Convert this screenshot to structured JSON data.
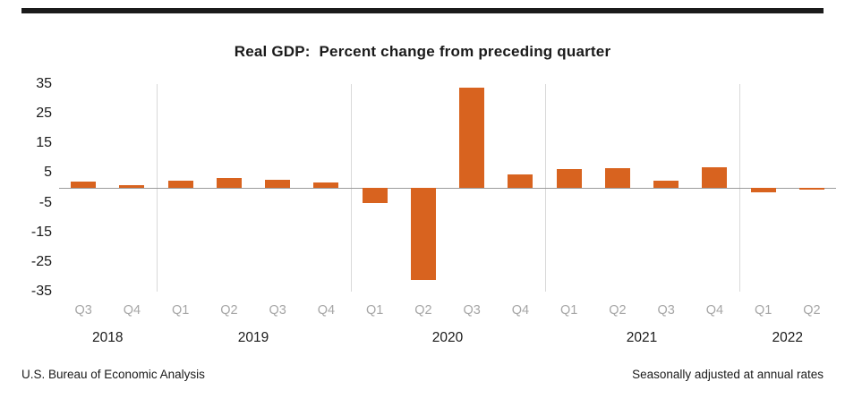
{
  "page": {
    "title": "Real GDP:  Percent change from preceding quarter",
    "footer_left": "U.S. Bureau of Economic Analysis",
    "footer_right": "Seasonally adjusted at annual rates"
  },
  "chart_data": {
    "type": "bar",
    "title": "Real GDP:  Percent change from preceding quarter",
    "categories": [
      "Q3",
      "Q4",
      "Q1",
      "Q2",
      "Q3",
      "Q4",
      "Q1",
      "Q2",
      "Q3",
      "Q4",
      "Q1",
      "Q2",
      "Q3",
      "Q4",
      "Q1",
      "Q2"
    ],
    "years": [
      {
        "label": "2018",
        "quarters": 2
      },
      {
        "label": "2019",
        "quarters": 4
      },
      {
        "label": "2020",
        "quarters": 4
      },
      {
        "label": "2021",
        "quarters": 4
      },
      {
        "label": "2022",
        "quarters": 2
      }
    ],
    "values": [
      2.1,
      0.9,
      2.4,
      3.2,
      2.8,
      1.9,
      -5.1,
      -31.2,
      33.8,
      4.5,
      6.3,
      6.7,
      2.3,
      6.9,
      -1.6,
      -0.6
    ],
    "ylim": [
      -35,
      35
    ],
    "yticks": [
      35,
      25,
      15,
      5,
      -5,
      -15,
      -25,
      -35
    ],
    "xlabel": "",
    "ylabel": "",
    "bar_color": "#d8631f",
    "grid": "vertical-year-separators",
    "legend": "none",
    "footer_left": "U.S. Bureau of Economic Analysis",
    "footer_right": "Seasonally adjusted at annual rates"
  }
}
